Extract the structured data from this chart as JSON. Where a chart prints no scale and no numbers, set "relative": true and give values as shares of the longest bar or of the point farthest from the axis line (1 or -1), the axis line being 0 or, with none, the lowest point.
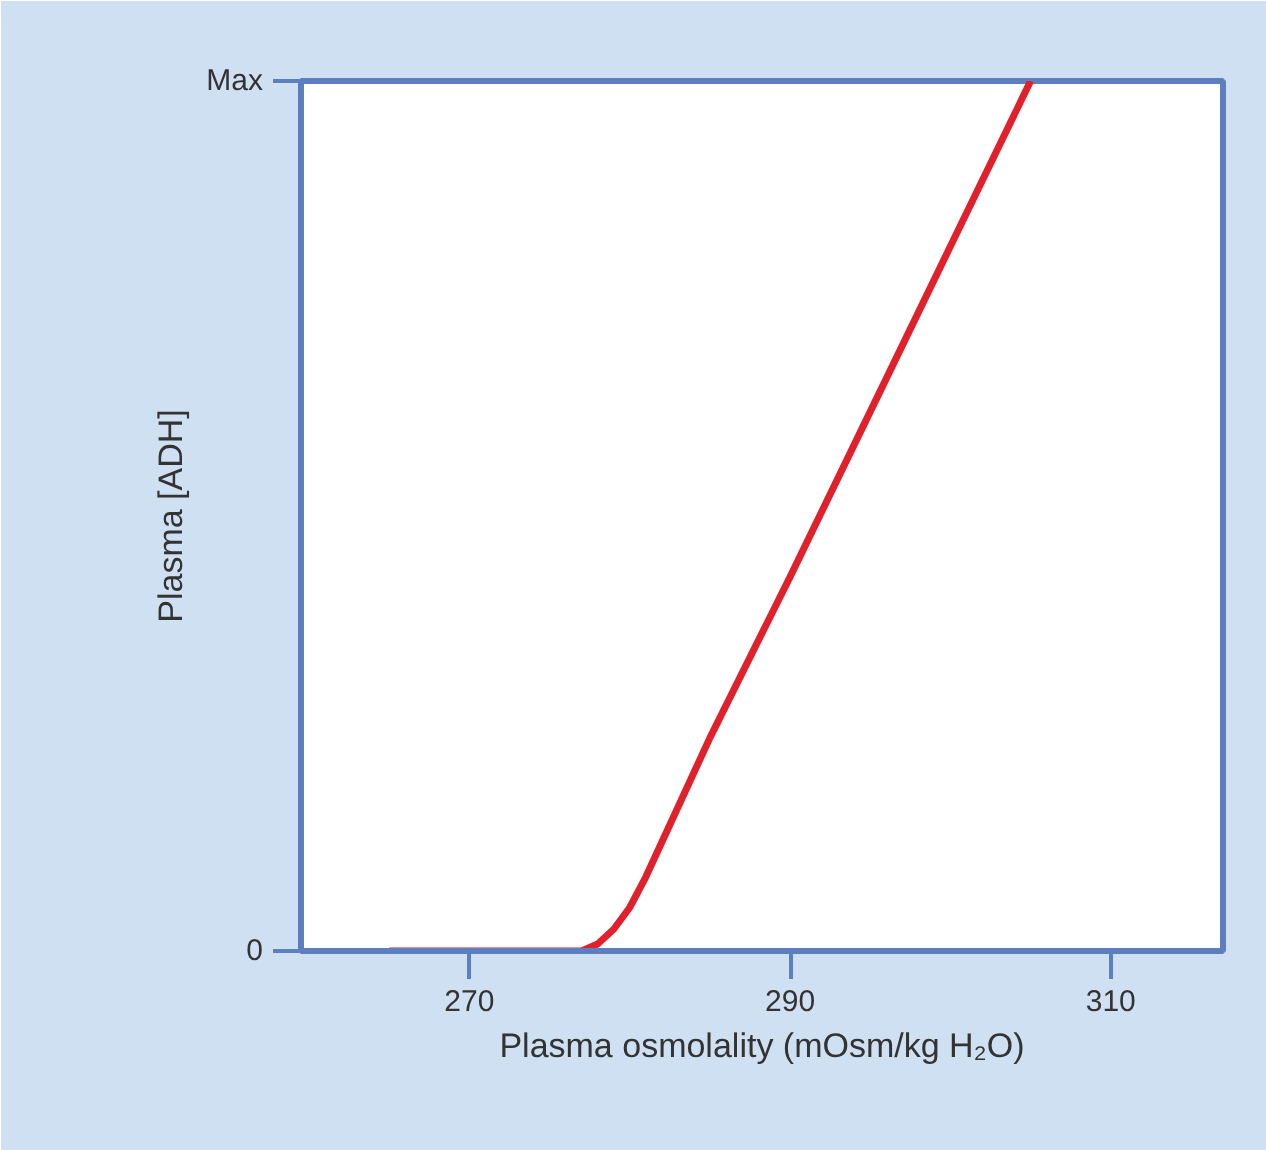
{
  "chart_data": {
    "type": "line",
    "xlabel": "Plasma osmolality (mOsm/kg H₂O)",
    "ylabel": "Plasma [ADH]",
    "relative": true,
    "x": [
      265,
      270,
      275,
      277,
      278,
      279,
      280,
      281,
      282,
      283,
      285,
      290,
      295,
      300,
      305
    ],
    "series": [
      {
        "color": "#e0202a",
        "values": [
          0,
          0,
          0,
          0,
          0.008,
          0.025,
          0.05,
          0.085,
          0.125,
          0.165,
          0.245,
          0.43,
          0.62,
          0.81,
          1.0
        ]
      }
    ],
    "xlim": [
      259.5,
      317
    ],
    "xticks": [
      270,
      290,
      310
    ],
    "annotations": [
      "0",
      "Max"
    ],
    "grid": false,
    "marker": "none",
    "line_style": "solid"
  }
}
